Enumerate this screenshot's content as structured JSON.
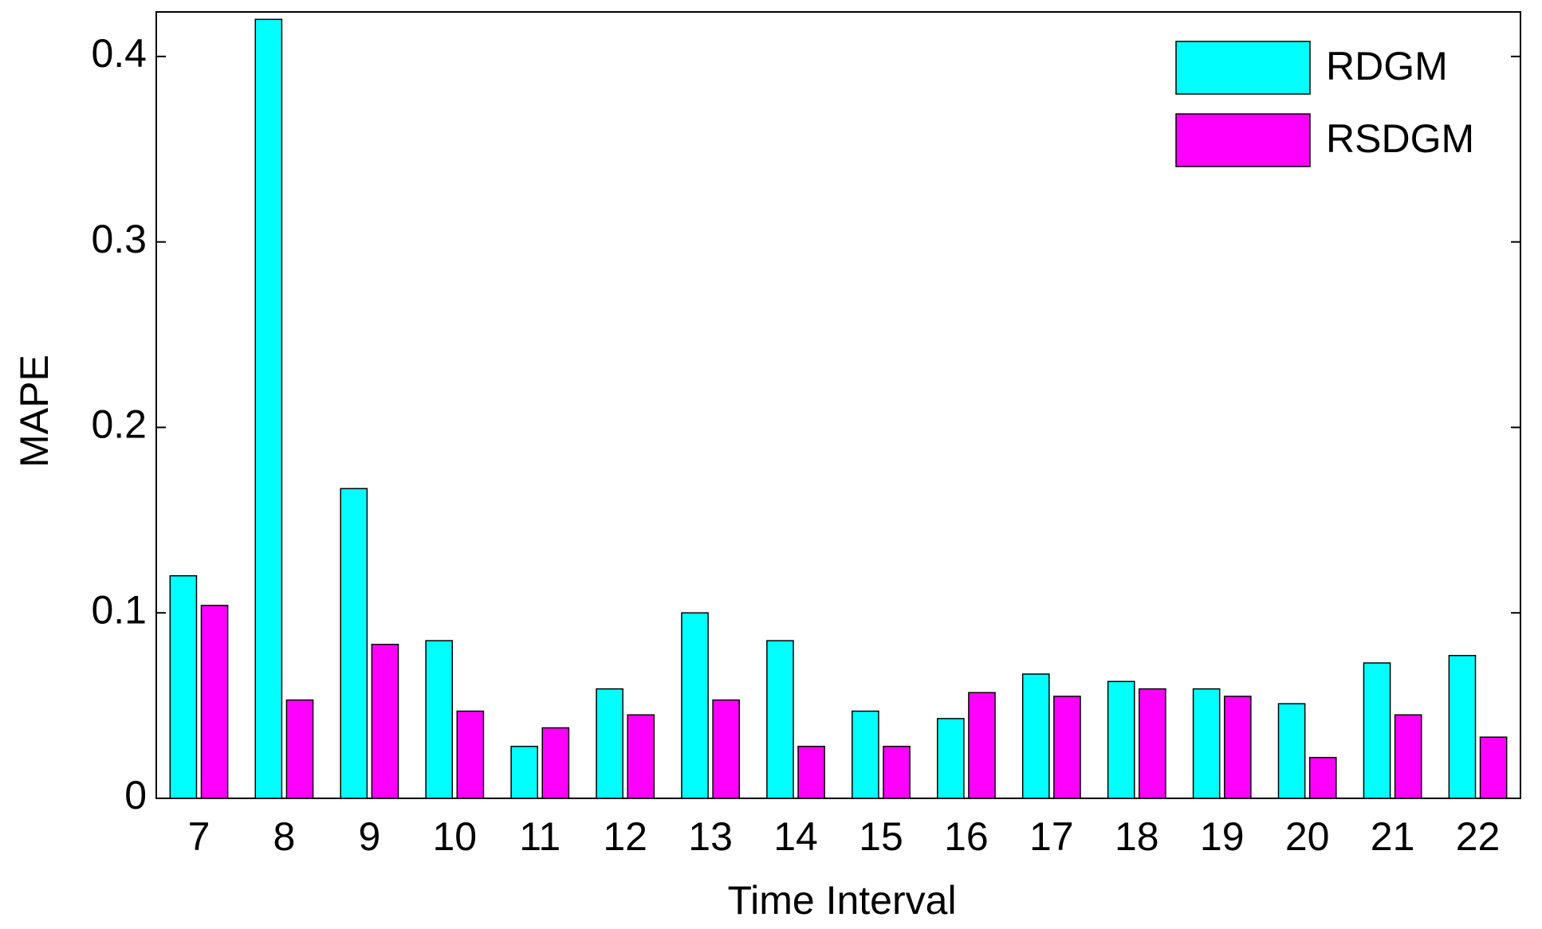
{
  "chart_data": {
    "type": "bar",
    "x_label": "Time Interval",
    "y_label": "MAPE",
    "categories": [
      "7",
      "8",
      "9",
      "10",
      "11",
      "12",
      "13",
      "14",
      "15",
      "16",
      "17",
      "18",
      "19",
      "20",
      "21",
      "22"
    ],
    "series": [
      {
        "name": "RDGM",
        "color": "#00ffff",
        "values": [
          0.12,
          0.42,
          0.167,
          0.085,
          0.028,
          0.059,
          0.1,
          0.085,
          0.047,
          0.043,
          0.067,
          0.063,
          0.059,
          0.051,
          0.073,
          0.077
        ]
      },
      {
        "name": "RSDGM",
        "color": "#ff00ff",
        "values": [
          0.104,
          0.053,
          0.083,
          0.047,
          0.038,
          0.045,
          0.053,
          0.028,
          0.028,
          0.057,
          0.055,
          0.059,
          0.055,
          0.022,
          0.045,
          0.033
        ]
      }
    ],
    "ylim": [
      0,
      0.424
    ],
    "yticks": [
      0,
      0.1,
      0.2,
      0.3,
      0.4
    ],
    "grid": false,
    "legend": "upper right"
  }
}
